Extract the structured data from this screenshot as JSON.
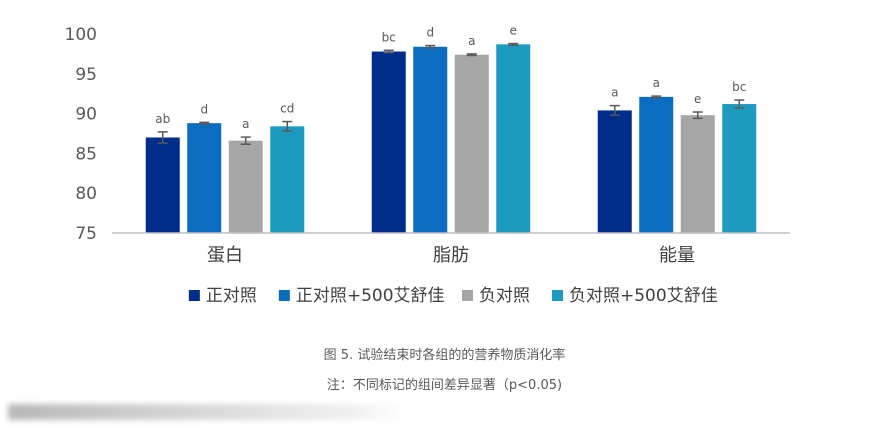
{
  "chart_data": {
    "type": "bar",
    "categories": [
      "蛋白",
      "脂肪",
      "能量"
    ],
    "ylim": [
      75,
      100
    ],
    "yticks": [
      75,
      80,
      85,
      90,
      95,
      100
    ],
    "grid": false,
    "legend_position": "bottom",
    "series": [
      {
        "name": "正对照",
        "color": "#002D8C",
        "values": [
          87.0,
          97.8,
          90.4
        ],
        "errors": [
          0.7,
          0.15,
          0.6
        ],
        "labels": [
          "ab",
          "bc",
          "a"
        ]
      },
      {
        "name": "正对照+500艾舒佳",
        "color": "#0B6DBF",
        "values": [
          88.8,
          98.4,
          92.1
        ],
        "errors": [
          0.1,
          0.15,
          0.1
        ],
        "labels": [
          "d",
          "d",
          "a"
        ]
      },
      {
        "name": "负对照",
        "color": "#A6A6A6",
        "values": [
          86.6,
          97.4,
          89.8
        ],
        "errors": [
          0.45,
          0.1,
          0.4
        ],
        "labels": [
          "a",
          "a",
          "e"
        ]
      },
      {
        "name": "负对照+500艾舒佳",
        "color": "#1D9AC0",
        "values": [
          88.4,
          98.7,
          91.2
        ],
        "errors": [
          0.6,
          0.1,
          0.5
        ],
        "labels": [
          "cd",
          "e",
          "bc"
        ]
      }
    ]
  },
  "caption": {
    "title": "图 5. 试验结束时各组的的营养物质消化率",
    "note": "注：不同标记的组间差异显著（p<0.05)"
  }
}
